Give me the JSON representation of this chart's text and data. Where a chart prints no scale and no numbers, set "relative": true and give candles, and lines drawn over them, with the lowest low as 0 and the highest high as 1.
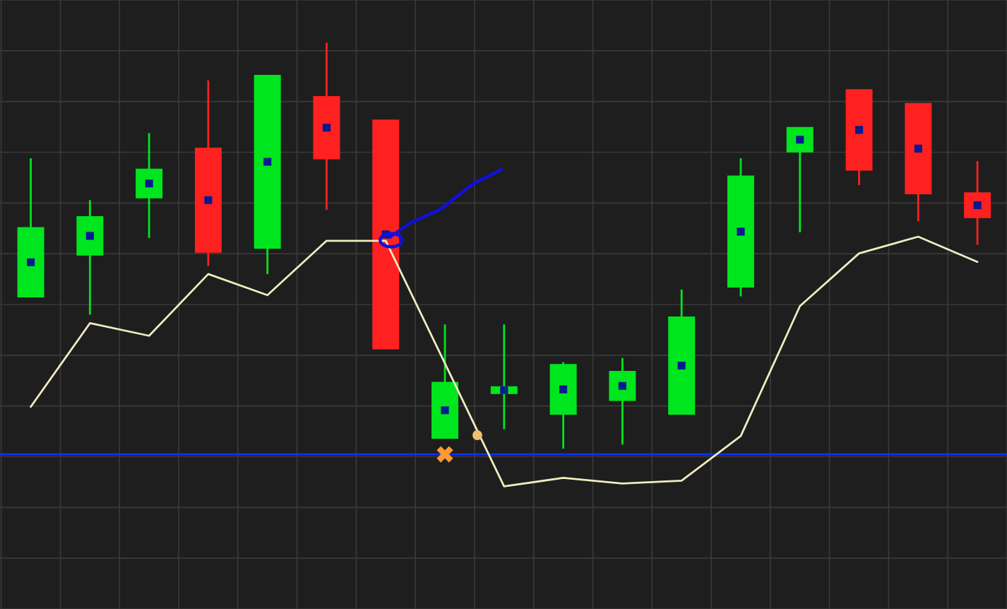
{
  "chart_data": {
    "type": "candlestick",
    "relative": true,
    "grid": true,
    "categories": [
      null,
      null,
      null,
      null,
      null,
      null,
      null,
      null,
      null,
      null,
      null,
      null,
      null,
      null,
      null,
      null,
      null
    ],
    "ohlc": [
      [
        0.375,
        0.715,
        0.375,
        0.543
      ],
      [
        0.478,
        0.612,
        0.33,
        0.57
      ],
      [
        0.619,
        0.777,
        0.519,
        0.687
      ],
      [
        0.739,
        0.907,
        0.45,
        0.485
      ],
      [
        0.495,
        0.918,
        0.43,
        0.918
      ],
      [
        0.866,
        1.0,
        0.588,
        0.715
      ],
      [
        0.808,
        0.808,
        0.247,
        0.247
      ],
      [
        0.027,
        0.306,
        0.027,
        0.162
      ],
      [
        0.137,
        0.306,
        0.048,
        0.151
      ],
      [
        0.086,
        0.213,
        0.0,
        0.206
      ],
      [
        0.12,
        0.223,
        0.01,
        0.189
      ],
      [
        0.086,
        0.392,
        0.086,
        0.323
      ],
      [
        0.399,
        0.715,
        0.375,
        0.67
      ],
      [
        0.732,
        0.79,
        0.533,
        0.79
      ],
      [
        0.883,
        0.883,
        0.649,
        0.687
      ],
      [
        0.849,
        0.849,
        0.56,
        0.629
      ],
      [
        0.629,
        0.708,
        0.502,
        0.57
      ]
    ],
    "colors": [
      "#00e61e",
      "#00e61e",
      "#00e61e",
      "#ff2020",
      "#00e61e",
      "#ff2020",
      "#ff2020",
      "#00e61e",
      "#00e61e",
      "#00e61e",
      "#00e61e",
      "#00e61e",
      "#00e61e",
      "#00e61e",
      "#ff2020",
      "#ff2020",
      "#ff2020"
    ],
    "series": [
      {
        "type": "line",
        "color": "#f0ecc0",
        "values": [
          0.103,
          0.309,
          0.278,
          0.43,
          0.378,
          0.512,
          0.512,
          0.21,
          -0.093,
          -0.072,
          -0.086,
          -0.079,
          0.031,
          0.351,
          0.481,
          0.522,
          0.46
        ]
      },
      {
        "type": "scatter",
        "marker": "cross",
        "color": "#ff9a30",
        "values": [
          null,
          null,
          null,
          null,
          null,
          null,
          null,
          -0.014,
          null,
          null,
          null,
          null,
          null,
          null,
          null,
          null,
          null
        ]
      }
    ],
    "ref_lines": [
      {
        "axis": "y",
        "value": -0.014,
        "color": "#1030ff"
      }
    ]
  }
}
